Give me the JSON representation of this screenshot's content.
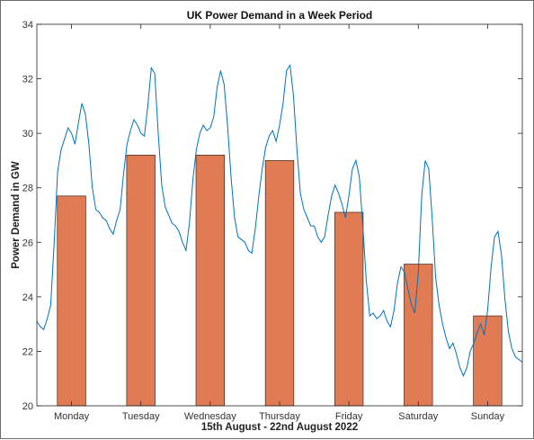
{
  "chart_data": {
    "type": "bar",
    "title": "UK Power Demand in a Week Period",
    "xlabel": "15th August - 22nd August 2022",
    "ylabel": "Power Demand in GW",
    "categories": [
      "Monday",
      "Tuesday",
      "Wednesday",
      "Thursday",
      "Friday",
      "Saturday",
      "Sunday"
    ],
    "ylim": [
      20,
      34
    ],
    "yticks": [
      20,
      22,
      24,
      26,
      28,
      30,
      32,
      34
    ],
    "grid": false,
    "series": [
      {
        "type": "bar",
        "values": [
          27.7,
          29.2,
          29.2,
          29.0,
          27.1,
          25.2,
          23.3
        ]
      },
      {
        "type": "line",
        "x": [
          0,
          0.05,
          0.1,
          0.15,
          0.2,
          0.25,
          0.3,
          0.35,
          0.4,
          0.45,
          0.5,
          0.55,
          0.6,
          0.65,
          0.7,
          0.75,
          0.8,
          0.85,
          0.9,
          0.95,
          1.0,
          1.05,
          1.1,
          1.15,
          1.2,
          1.25,
          1.3,
          1.35,
          1.4,
          1.45,
          1.5,
          1.55,
          1.6,
          1.65,
          1.7,
          1.75,
          1.8,
          1.85,
          1.9,
          1.95,
          2.0,
          2.05,
          2.1,
          2.15,
          2.2,
          2.25,
          2.3,
          2.35,
          2.4,
          2.45,
          2.5,
          2.55,
          2.6,
          2.65,
          2.7,
          2.75,
          2.8,
          2.85,
          2.9,
          2.95,
          3.0,
          3.05,
          3.1,
          3.15,
          3.2,
          3.25,
          3.3,
          3.35,
          3.4,
          3.45,
          3.5,
          3.55,
          3.6,
          3.65,
          3.7,
          3.75,
          3.8,
          3.85,
          3.9,
          3.95,
          4.0,
          4.05,
          4.1,
          4.15,
          4.2,
          4.25,
          4.3,
          4.35,
          4.4,
          4.45,
          4.5,
          4.55,
          4.6,
          4.65,
          4.7,
          4.75,
          4.8,
          4.85,
          4.9,
          4.95,
          5.0,
          5.05,
          5.1,
          5.15,
          5.2,
          5.25,
          5.3,
          5.35,
          5.4,
          5.45,
          5.5,
          5.55,
          5.6,
          5.65,
          5.7,
          5.75,
          5.8,
          5.85,
          5.9,
          5.95,
          6.0,
          6.05,
          6.1,
          6.15,
          6.2,
          6.25,
          6.3,
          6.35,
          6.4,
          6.45,
          6.5,
          6.55,
          6.6,
          6.65,
          6.7,
          6.75,
          6.8,
          6.85,
          6.9,
          6.95,
          7.0
        ],
        "values": [
          23.1,
          22.9,
          22.8,
          23.2,
          23.7,
          26.0,
          28.6,
          29.4,
          29.8,
          30.2,
          30.0,
          29.6,
          30.4,
          31.1,
          30.7,
          29.6,
          28.0,
          27.2,
          27.1,
          26.9,
          26.8,
          26.5,
          26.3,
          26.8,
          27.2,
          28.5,
          29.6,
          30.1,
          30.5,
          30.3,
          30.0,
          29.9,
          31.0,
          32.4,
          32.2,
          30.0,
          28.1,
          27.3,
          27.0,
          26.7,
          26.6,
          26.4,
          26.0,
          25.7,
          26.7,
          28.3,
          29.4,
          30.0,
          30.3,
          30.1,
          30.2,
          30.6,
          31.7,
          32.3,
          31.8,
          30.3,
          28.4,
          26.9,
          26.2,
          26.1,
          26.0,
          25.7,
          25.6,
          26.5,
          27.7,
          28.7,
          29.5,
          29.9,
          30.1,
          29.7,
          30.3,
          31.1,
          32.3,
          32.5,
          31.4,
          29.4,
          27.8,
          27.2,
          26.9,
          26.6,
          26.6,
          26.2,
          26.0,
          26.2,
          27.0,
          27.7,
          28.1,
          27.8,
          27.4,
          26.9,
          27.7,
          28.7,
          29.0,
          28.4,
          26.6,
          24.6,
          23.3,
          23.4,
          23.2,
          23.3,
          23.5,
          23.1,
          22.9,
          23.5,
          24.5,
          25.1,
          24.9,
          24.3,
          23.7,
          23.4,
          24.9,
          27.7,
          29.0,
          28.7,
          26.9,
          24.7,
          23.7,
          23.0,
          22.5,
          22.1,
          22.3,
          21.9,
          21.4,
          21.1,
          21.4,
          22.0,
          22.3,
          22.7,
          23.0,
          22.6,
          23.5,
          25.1,
          26.2,
          26.4,
          25.5,
          23.9,
          22.7,
          22.1,
          21.8,
          21.7,
          21.6
        ]
      }
    ],
    "colors": {
      "bar": "#e07b54",
      "bar_edge": "#3a2a22",
      "line": "#0072bd",
      "axis": "#262626"
    }
  }
}
